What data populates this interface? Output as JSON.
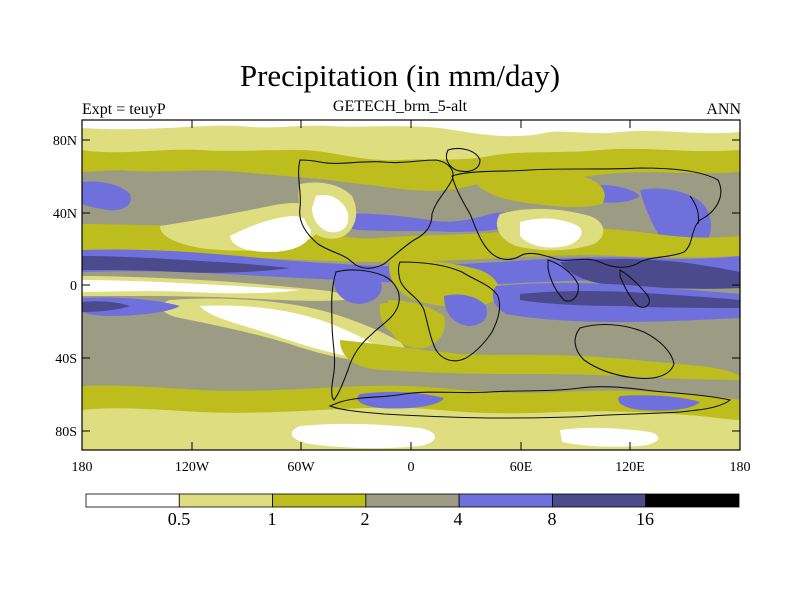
{
  "title": "Precipitation (in mm/day)",
  "subtitle": "GETECH_brm_5-alt",
  "left_label": "Expt = teuyP",
  "right_label": "ANN",
  "lat_ticks": [
    "80N",
    "40N",
    "0",
    "40S",
    "80S"
  ],
  "lon_ticks": [
    "180",
    "120W",
    "60W",
    "0",
    "60E",
    "120E",
    "180"
  ],
  "colorbar": {
    "labels": [
      "0.5",
      "1",
      "2",
      "4",
      "8",
      "16"
    ],
    "colors": [
      "#ffffff",
      "#dede80",
      "#bdbd1e",
      "#9c9c84",
      "#7070dd",
      "#4a4a8c",
      "#000000"
    ]
  },
  "palette": {
    "white": "#ffffff",
    "light_yellow": "#dede80",
    "olive": "#bdbd1e",
    "gray": "#9c9c84",
    "blue": "#7070dd",
    "dark_blue": "#4a4a8c",
    "coast": "#111111"
  }
}
